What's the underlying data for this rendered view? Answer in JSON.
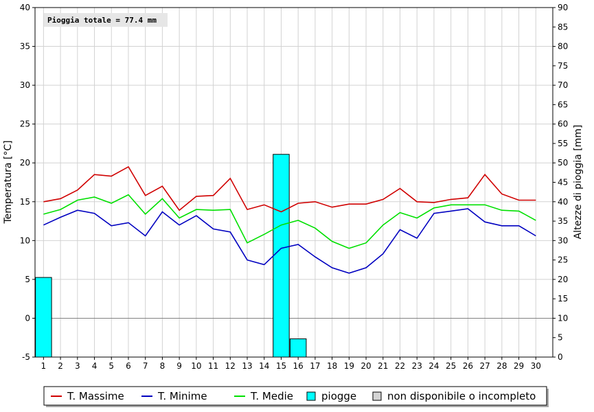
{
  "chart_data": {
    "type": "bar+line",
    "annotation": "Pioggia totale = 77.4 mm",
    "y_left": {
      "label": "Temperatura [°C]",
      "range": [
        -5,
        40
      ],
      "step": 5
    },
    "y_right": {
      "label": "Altezze di pioggia [mm]",
      "range": [
        0,
        90
      ],
      "step": 5
    },
    "x": [
      1,
      2,
      3,
      4,
      5,
      6,
      7,
      8,
      9,
      10,
      11,
      12,
      13,
      14,
      15,
      16,
      17,
      18,
      19,
      20,
      21,
      22,
      23,
      24,
      25,
      26,
      27,
      28,
      29,
      30
    ],
    "series": [
      {
        "name": "T. Massime",
        "color": "#d00000",
        "values": [
          15.0,
          15.4,
          16.5,
          18.5,
          18.3,
          19.5,
          15.8,
          17.0,
          13.9,
          15.7,
          15.8,
          18.0,
          14.0,
          14.6,
          13.7,
          14.8,
          15.0,
          14.3,
          14.7,
          14.7,
          15.3,
          16.7,
          15.0,
          14.9,
          15.3,
          15.5,
          18.5,
          16.0,
          15.2,
          15.2
        ]
      },
      {
        "name": "T. Minime",
        "color": "#0000c0",
        "values": [
          12.0,
          13.0,
          13.9,
          13.5,
          11.9,
          12.3,
          10.6,
          13.7,
          12.0,
          13.2,
          11.5,
          11.1,
          7.5,
          6.9,
          9.0,
          9.5,
          7.9,
          6.5,
          5.8,
          6.5,
          8.3,
          11.4,
          10.3,
          13.5,
          13.8,
          14.1,
          12.4,
          11.9,
          11.9,
          10.6
        ]
      },
      {
        "name": "T. Medie",
        "color": "#00e000",
        "values": [
          13.4,
          14.0,
          15.2,
          15.6,
          14.8,
          15.9,
          13.4,
          15.4,
          12.9,
          14.0,
          13.9,
          14.0,
          9.7,
          10.8,
          12.0,
          12.6,
          11.6,
          9.9,
          9.0,
          9.7,
          12.0,
          13.6,
          12.9,
          14.2,
          14.6,
          14.6,
          14.6,
          13.9,
          13.8,
          12.6
        ]
      }
    ],
    "rain": {
      "name": "piogge",
      "color": "#00ffff",
      "values": [
        20.5,
        0,
        0,
        0,
        0,
        0,
        0,
        0,
        0,
        0,
        0,
        0,
        0,
        0,
        52.2,
        4.7,
        0,
        0,
        0,
        0,
        0,
        0,
        0,
        0,
        0,
        0,
        0,
        0,
        0,
        0
      ]
    },
    "legend": [
      {
        "label": "T. Massime",
        "kind": "line",
        "color": "#d00000"
      },
      {
        "label": "T. Minime",
        "kind": "line",
        "color": "#0000c0"
      },
      {
        "label": "T. Medie",
        "kind": "line",
        "color": "#00e000"
      },
      {
        "label": "piogge",
        "kind": "box",
        "color": "#00ffff"
      },
      {
        "label": "non disponibile o incompleto",
        "kind": "box",
        "color": "#d4d4d4"
      }
    ]
  }
}
